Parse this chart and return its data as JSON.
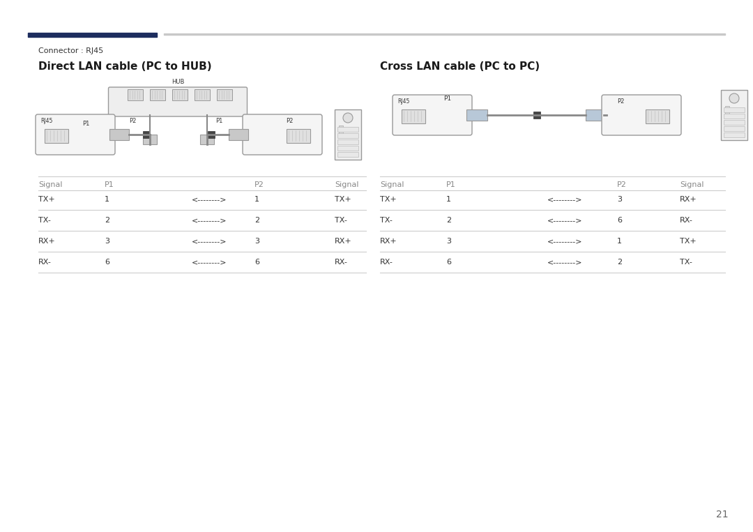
{
  "bg_color": "#ffffff",
  "page_number": "21",
  "top_bar_left_color": "#1d2d5e",
  "top_bar_right_color": "#c8c8c8",
  "connector_label": "Connector : RJ45",
  "left_title": "Direct LAN cable (PC to HUB)",
  "right_title": "Cross LAN cable (PC to PC)",
  "direct_table": {
    "headers": [
      "Signal",
      "P1",
      "",
      "P2",
      "Signal"
    ],
    "rows": [
      [
        "TX+",
        "1",
        "<-------->",
        "1",
        "TX+"
      ],
      [
        "TX-",
        "2",
        "<-------->",
        "2",
        "TX-"
      ],
      [
        "RX+",
        "3",
        "<-------->",
        "3",
        "RX+"
      ],
      [
        "RX-",
        "6",
        "<-------->",
        "6",
        "RX-"
      ]
    ]
  },
  "cross_table": {
    "headers": [
      "Signal",
      "P1",
      "",
      "P2",
      "Signal"
    ],
    "rows": [
      [
        "TX+",
        "1",
        "<-------->",
        "3",
        "RX+"
      ],
      [
        "TX-",
        "2",
        "<-------->",
        "6",
        "RX-"
      ],
      [
        "RX+",
        "3",
        "<-------->",
        "1",
        "TX+"
      ],
      [
        "RX-",
        "6",
        "<-------->",
        "2",
        "TX-"
      ]
    ]
  },
  "text_color": "#333333",
  "line_color": "#cccccc",
  "table_header_color": "#666666",
  "font_size_title": 11,
  "font_size_body": 8,
  "font_size_connector": 8,
  "font_size_page": 10
}
